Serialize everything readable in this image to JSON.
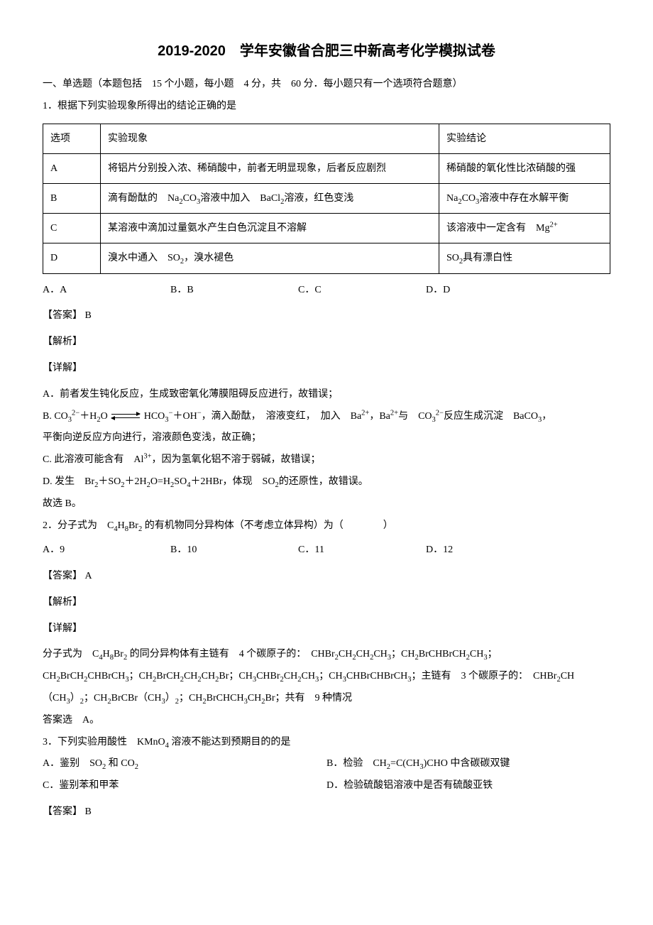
{
  "title": "2019-2020　学年安徽省合肥三中新高考化学模拟试卷",
  "section_note": "一、单选题（本题包括　15 个小题，每小题　4 分，共　60 分．每小题只有一个选项符合题意）",
  "q1": {
    "stem": "1．根据下列实验现象所得出的结论正确的是",
    "headers": {
      "opt": "选项",
      "phen": "实验现象",
      "conc": "实验结论"
    },
    "rows": [
      {
        "opt": "A",
        "phen": "将铝片分别投入浓、稀硝酸中，前者无明显现象，后者反应剧烈",
        "conc": "稀硝酸的氧化性比浓硝酸的强"
      },
      {
        "opt": "B",
        "phen_html": "滴有酚酞的　Na<sub>2</sub>CO<sub>3</sub>溶液中加入　BaCl<sub>2</sub>溶液，红色变浅",
        "conc_html": "Na<sub>2</sub>CO<sub>3</sub>溶液中存在水解平衡"
      },
      {
        "opt": "C",
        "phen": "某溶液中滴加过量氨水产生白色沉淀且不溶解",
        "conc_html": "该溶液中一定含有　Mg<sup>2+</sup>"
      },
      {
        "opt": "D",
        "phen_html": "溴水中通入　SO<sub>2</sub>，溴水褪色",
        "conc_html": "SO<sub>2</sub>具有漂白性"
      }
    ],
    "options": {
      "A": "A．A",
      "B": "B．B",
      "C": "C．C",
      "D": "D．D"
    },
    "answer": "【答案】 B",
    "parse": "【解析】",
    "detail": "【详解】",
    "expA": "A．前者发生钝化反应，生成致密氧化薄膜阻碍反应进行，故错误；",
    "expB_pre": "B. CO",
    "expB_rest_html": "<sub>3</sub><sup>2−</sup>＋H<sub>2</sub>O",
    "expB_after_html": "HCO<sub>3</sub><sup>−</sup>＋OH<sup>−</sup>，滴入酚酞，　溶液变红，　加入　Ba<sup>2+</sup>，Ba<sup>2+</sup>与　CO<sub>3</sub><sup>2−</sup>反应生成沉淀　BaCO<sub>3</sub>，",
    "expB_line2": "平衡向逆反应方向进行，溶液颜色变浅，故正确；",
    "expC_html": "C. 此溶液可能含有　Al<sup>3+</sup>，因为氢氧化铝不溶于弱碱，故错误；",
    "expD_html": "D. 发生　Br<sub>2</sub>＋SO<sub>2</sub>＋2H<sub>2</sub>O=H<sub>2</sub>SO<sub>4</sub>＋2HBr，体现　SO<sub>2</sub>的还原性，故错误。",
    "conclude": "故选 B。"
  },
  "q2": {
    "stem_html": "2．分子式为　C<sub>4</sub>H<sub>8</sub>Br<sub>2</sub> 的有机物同分异构体（不考虑立体异构）为（　　　　）",
    "options": {
      "A": "A．9",
      "B": "B．10",
      "C": "C．11",
      "D": "D．12"
    },
    "answer": "【答案】 A",
    "parse": "【解析】",
    "detail": "【详解】",
    "line1_html": "分子式为　C<sub>4</sub>H<sub>8</sub>Br<sub>2</sub> 的同分异构体有主链有　4 个碳原子的：　CHBr<sub>2</sub>CH<sub>2</sub>CH<sub>2</sub>CH<sub>3</sub>；CH<sub>2</sub>BrCHBrCH<sub>2</sub>CH<sub>3</sub>；",
    "line2_html": "CH<sub>2</sub>BrCH<sub>2</sub>CHBrCH<sub>3</sub>；CH<sub>2</sub>BrCH<sub>2</sub>CH<sub>2</sub>CH<sub>2</sub>Br；CH<sub>3</sub>CHBr<sub>2</sub>CH<sub>2</sub>CH<sub>3</sub>；CH<sub>3</sub>CHBrCHBrCH<sub>3</sub>；主链有　3 个碳原子的：　CHBr<sub>2</sub>CH",
    "line3_html": "（CH<sub>3</sub>）<sub>2</sub>；CH<sub>2</sub>BrCBr（CH<sub>3</sub>）<sub>2</sub>；CH<sub>2</sub>BrCHCH<sub>3</sub>CH<sub>2</sub>Br；共有　9 种情况",
    "conclude": "答案选　A。"
  },
  "q3": {
    "stem_html": "3．下列实验用酸性　KMnO<sub>4</sub> 溶液不能达到预期目的的是",
    "optA_html": "A．鉴别　SO<sub>2</sub> 和 CO<sub>2</sub>",
    "optB_html": "B．检验　CH<sub>2</sub>=C(CH<sub>3</sub>)CHO 中含碳碳双键",
    "optC": "C．鉴别苯和甲苯",
    "optD": "D．检验硫酸铝溶液中是否有硫酸亚铁",
    "answer": "【答案】 B"
  }
}
